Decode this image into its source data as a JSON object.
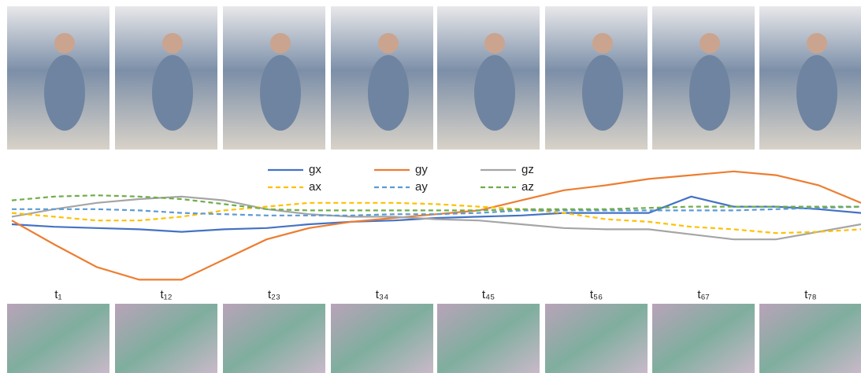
{
  "chart_data": {
    "type": "line",
    "legend": "top",
    "ylim": [
      0,
      100
    ],
    "series": [
      {
        "name": "gx",
        "color": "#4472c4",
        "style": "solid",
        "values": [
          50,
          48,
          47,
          46,
          44,
          46,
          47,
          50,
          52,
          53,
          55,
          56,
          57,
          59,
          59,
          59,
          72,
          64,
          64,
          62,
          59
        ]
      },
      {
        "name": "gy",
        "color": "#ed7d31",
        "style": "solid",
        "values": [
          53,
          34,
          16,
          6,
          6,
          22,
          38,
          47,
          52,
          55,
          58,
          61,
          69,
          77,
          81,
          86,
          89,
          92,
          89,
          81,
          67
        ]
      },
      {
        "name": "gz",
        "color": "#a5a5a5",
        "style": "solid",
        "values": [
          56,
          62,
          67,
          70,
          72,
          69,
          62,
          58,
          56,
          56,
          54,
          53,
          50,
          47,
          46,
          46,
          42,
          38,
          38,
          44,
          50
        ]
      },
      {
        "name": "ax",
        "color": "#ffc000",
        "style": "dashed",
        "values": [
          59,
          56,
          53,
          53,
          56,
          61,
          64,
          67,
          67,
          67,
          66,
          64,
          62,
          59,
          54,
          52,
          48,
          46,
          43,
          44,
          46
        ]
      },
      {
        "name": "ay",
        "color": "#5b9bd5",
        "style": "dashed",
        "values": [
          62,
          62,
          62,
          61,
          59,
          58,
          57,
          57,
          57,
          58,
          58,
          59,
          61,
          61,
          61,
          61,
          61,
          61,
          62,
          63,
          64
        ]
      },
      {
        "name": "az",
        "color": "#70ad47",
        "style": "dashed",
        "values": [
          69,
          72,
          73,
          72,
          70,
          66,
          62,
          61,
          61,
          61,
          61,
          61,
          62,
          62,
          62,
          63,
          64,
          64,
          64,
          64,
          64
        ]
      }
    ]
  },
  "frame_labels": [
    "t₁",
    "t₁₂",
    "t₂₃",
    "t₃₄",
    "t₄₅",
    "t₅₆",
    "t₆₇",
    "t₇₈"
  ]
}
